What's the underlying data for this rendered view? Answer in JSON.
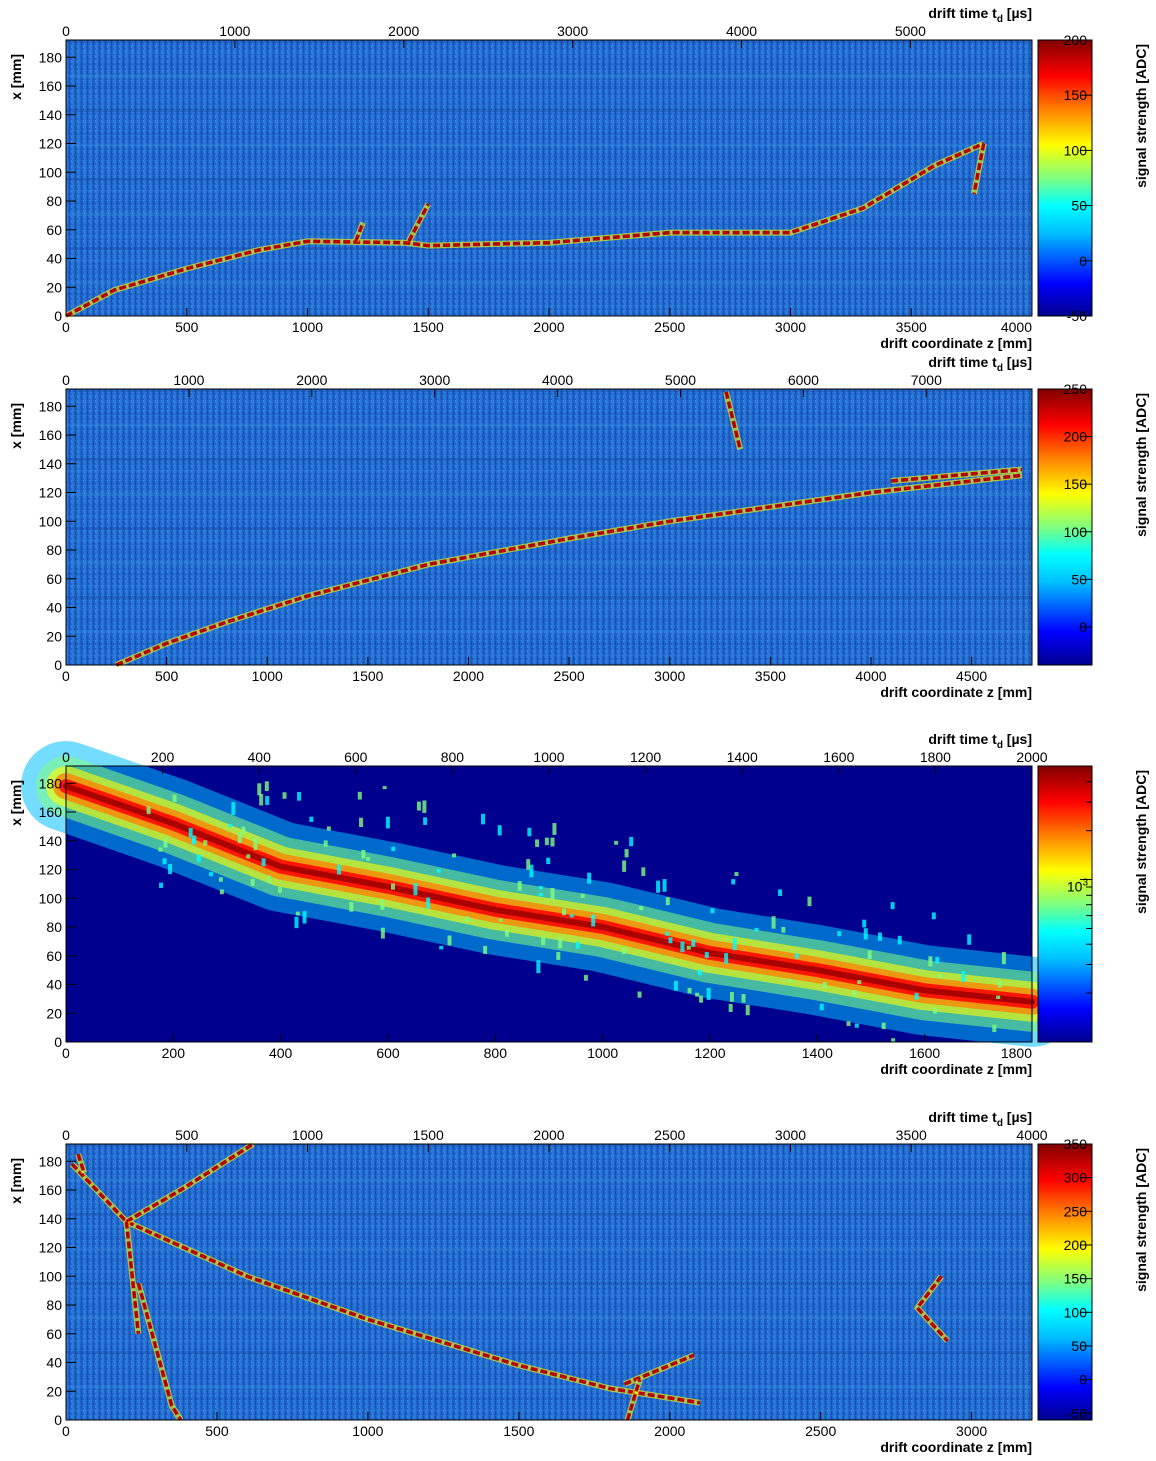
{
  "colors": {
    "background_low": "#0a1f8a",
    "track": "#b40000",
    "frame": "#000000",
    "colormap": [
      "#00008f",
      "#0000ff",
      "#00bfff",
      "#00ffff",
      "#7fff7f",
      "#ffff00",
      "#ff7f00",
      "#ff0000",
      "#800000"
    ]
  },
  "chart_data": [
    {
      "type": "heatmap",
      "x_axis": {
        "label": "drift coordinate z [mm]",
        "range": [
          0,
          4000
        ],
        "ticks": [
          0,
          500,
          1000,
          1500,
          2000,
          2500,
          3000,
          3500,
          4000
        ]
      },
      "x2_axis": {
        "label_prefix": "drift time t",
        "label_sub": "d",
        "label_suffix": " [µs]",
        "range": [
          0,
          5720
        ],
        "ticks": [
          0,
          1000,
          2000,
          3000,
          4000,
          5000
        ]
      },
      "y_axis": {
        "label": "x [mm]",
        "range": [
          0,
          192
        ],
        "ticks": [
          0,
          20,
          40,
          60,
          80,
          100,
          120,
          140,
          160,
          180
        ]
      },
      "colorbar": {
        "label": "signal strength [ADC]",
        "range": [
          -50,
          200
        ],
        "scale": "linear",
        "ticks": [
          -50,
          0,
          50,
          100,
          150,
          200
        ]
      },
      "track_segments": [
        [
          [
            0,
            0
          ],
          [
            200,
            18
          ],
          [
            500,
            33
          ],
          [
            800,
            46
          ],
          [
            1000,
            52
          ],
          [
            1400,
            51
          ],
          [
            1500,
            49
          ],
          [
            2000,
            51
          ],
          [
            2500,
            58
          ],
          [
            3000,
            58
          ],
          [
            3300,
            75
          ],
          [
            3600,
            105
          ],
          [
            3800,
            120
          ]
        ],
        [
          [
            3800,
            120
          ],
          [
            3760,
            85
          ]
        ],
        [
          [
            1420,
            52
          ],
          [
            1500,
            78
          ]
        ],
        [
          [
            1200,
            52
          ],
          [
            1230,
            65
          ]
        ]
      ]
    },
    {
      "type": "heatmap",
      "x_axis": {
        "label": "drift coordinate z [mm]",
        "range": [
          0,
          4800
        ],
        "ticks": [
          0,
          500,
          1000,
          1500,
          2000,
          2500,
          3000,
          3500,
          4000,
          4500
        ]
      },
      "x2_axis": {
        "label_prefix": "drift time t",
        "label_sub": "d",
        "label_suffix": " [µs]",
        "range": [
          0,
          7860
        ],
        "ticks": [
          0,
          1000,
          2000,
          3000,
          4000,
          5000,
          6000,
          7000
        ]
      },
      "y_axis": {
        "label": "x [mm]",
        "range": [
          0,
          192
        ],
        "ticks": [
          0,
          20,
          40,
          60,
          80,
          100,
          120,
          140,
          160,
          180
        ]
      },
      "colorbar": {
        "label": "signal strength [ADC]",
        "range": [
          -40,
          250
        ],
        "scale": "linear",
        "ticks": [
          0,
          50,
          100,
          150,
          200,
          250
        ]
      },
      "track_segments": [
        [
          [
            250,
            0
          ],
          [
            500,
            15
          ],
          [
            800,
            30
          ],
          [
            1200,
            48
          ],
          [
            1800,
            70
          ],
          [
            2500,
            88
          ],
          [
            3000,
            100
          ],
          [
            3500,
            110
          ],
          [
            4000,
            120
          ],
          [
            4500,
            128
          ],
          [
            4750,
            132
          ]
        ],
        [
          [
            3280,
            190
          ],
          [
            3350,
            150
          ]
        ],
        [
          [
            4100,
            128
          ],
          [
            4750,
            136
          ]
        ]
      ]
    },
    {
      "type": "heatmap",
      "x_axis": {
        "label": "drift coordinate z [mm]",
        "range": [
          0,
          1800
        ],
        "ticks": [
          0,
          200,
          400,
          600,
          800,
          1000,
          1200,
          1400,
          1600,
          1800
        ]
      },
      "x2_axis": {
        "label_prefix": "drift time t",
        "label_sub": "d",
        "label_suffix": " [µs]",
        "range": [
          0,
          2000
        ],
        "ticks": [
          0,
          200,
          400,
          600,
          800,
          1000,
          1200,
          1400,
          1600,
          1800,
          2000
        ]
      },
      "y_axis": {
        "label": "x [mm]",
        "range": [
          0,
          192
        ],
        "ticks": [
          0,
          20,
          40,
          60,
          80,
          100,
          120,
          140,
          160,
          180
        ]
      },
      "colorbar": {
        "label": "signal strength [ADC]",
        "range": [
          100,
          5000
        ],
        "scale": "log",
        "major_ticks": [
          1000
        ],
        "major_labels": [
          "10"
        ],
        "major_label_exp": "3"
      },
      "shower_axis": [
        [
          0,
          178
        ],
        [
          200,
          152
        ],
        [
          400,
          122
        ],
        [
          600,
          108
        ],
        [
          800,
          92
        ],
        [
          1000,
          80
        ],
        [
          1200,
          62
        ],
        [
          1400,
          50
        ],
        [
          1600,
          36
        ],
        [
          1800,
          28
        ]
      ]
    },
    {
      "type": "heatmap",
      "x_axis": {
        "label": "drift coordinate z [mm]",
        "range": [
          0,
          3200
        ],
        "ticks": [
          0,
          500,
          1000,
          1500,
          2000,
          2500,
          3000
        ]
      },
      "x2_axis": {
        "label_prefix": "drift time t",
        "label_sub": "d",
        "label_suffix": " [µs]",
        "range": [
          0,
          4000
        ],
        "ticks": [
          0,
          500,
          1000,
          1500,
          2000,
          2500,
          3000,
          3500,
          4000
        ]
      },
      "y_axis": {
        "label": "x [mm]",
        "range": [
          0,
          192
        ],
        "ticks": [
          0,
          20,
          40,
          60,
          80,
          100,
          120,
          140,
          160,
          180
        ]
      },
      "colorbar": {
        "label": "signal strength [ADC]",
        "range": [
          -60,
          350
        ],
        "scale": "linear",
        "ticks": [
          -50,
          0,
          50,
          100,
          150,
          200,
          250,
          300,
          350
        ]
      },
      "track_segments": [
        [
          [
            20,
            178
          ],
          [
            200,
            138
          ],
          [
            600,
            100
          ],
          [
            1000,
            70
          ],
          [
            1500,
            38
          ],
          [
            1800,
            22
          ],
          [
            2100,
            12
          ]
        ],
        [
          [
            200,
            138
          ],
          [
            380,
            160
          ],
          [
            620,
            192
          ]
        ],
        [
          [
            240,
            95
          ],
          [
            350,
            10
          ],
          [
            380,
            0
          ]
        ],
        [
          [
            200,
            138
          ],
          [
            240,
            60
          ]
        ],
        [
          [
            2900,
            100
          ],
          [
            2820,
            78
          ],
          [
            2920,
            55
          ]
        ],
        [
          [
            1850,
            25
          ],
          [
            2080,
            45
          ]
        ],
        [
          [
            1860,
            0
          ],
          [
            1900,
            28
          ]
        ],
        [
          [
            40,
            185
          ],
          [
            60,
            172
          ]
        ]
      ]
    }
  ]
}
